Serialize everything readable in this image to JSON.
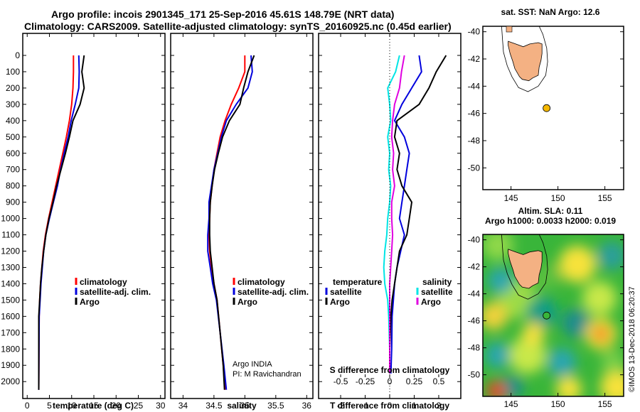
{
  "header": {
    "title_line1": "Argo profile: incois 2901345_171 25-Sep-2016 45.61S 148.79E (NRT data)",
    "title_line2": "Climatology: CARS2009. Satellite-adjusted climatology: synTS_20160925.nc (0.45d earlier)"
  },
  "depth_ticks": [
    "0",
    "100",
    "200",
    "300",
    "400",
    "500",
    "600",
    "700",
    "800",
    "900",
    "1000",
    "1100",
    "1200",
    "1300",
    "1400",
    "1500",
    "1600",
    "1700",
    "1800",
    "1900",
    "2000"
  ],
  "colors": {
    "climatology": "#ff0000",
    "satellite": "#0000dd",
    "argo": "#000000",
    "sat_diff_s": "#00e5e5",
    "argo_diff_s": "#e000e0",
    "land": "#f4b183"
  },
  "panels": {
    "temperature": {
      "xlabel": "temperature (deg C)",
      "xticks": [
        "0",
        "5",
        "10",
        "15",
        "20",
        "25",
        "30"
      ],
      "legend": [
        "climatology",
        "satellite-adj. clim.",
        "Argo"
      ]
    },
    "salinity": {
      "xlabel": "salinity",
      "xticks": [
        "34",
        "34.5",
        "35",
        "35.5",
        "36"
      ],
      "legend": [
        "climatology",
        "satellite-adj. clim.",
        "Argo"
      ],
      "credit1": "Argo INDIA",
      "credit2": "PI: M Ravichandran"
    },
    "difference": {
      "xlabel": "T difference from climatology",
      "xticks": [
        "-2",
        "-1",
        "0",
        "1",
        "2"
      ],
      "s_label": "S difference from climatology",
      "s_ticks": [
        "-0.5",
        "-0.25",
        "0",
        "0.25",
        "0.5"
      ],
      "legend_t_title": "temperature",
      "legend_s_title": "salinity",
      "legend_t": [
        "satellite",
        "Argo"
      ],
      "legend_s": [
        "satellite",
        "Argo"
      ]
    }
  },
  "maps": {
    "sst_title": "sat. SST: NaN Argo: 12.6",
    "sla_title": "Altim. SLA: 0.11",
    "sla_sub": "Argo h1000: 0.0033 h2000: 0.019",
    "lat_ticks_top": [
      "-40",
      "-42",
      "-44",
      "-46",
      "-48",
      "-50"
    ],
    "lat_ticks_bottom": [
      "-40",
      "-42",
      "-44",
      "-46",
      "-48",
      "-50"
    ],
    "lon_ticks": [
      "145",
      "150",
      "155"
    ],
    "float_position": {
      "lon": 148.79,
      "lat": -45.61
    },
    "footer": "©IMOS 13-Dec-2018 06:20:37"
  },
  "chart_data": [
    {
      "type": "line",
      "title": "",
      "xlabel": "temperature (deg C)",
      "ylabel": "",
      "xlim": [
        -1,
        31
      ],
      "ylim": [
        2050,
        0
      ],
      "series": [
        {
          "name": "climatology",
          "x": [
            10.4,
            10.4,
            10.3,
            10.0,
            9.5,
            8.8,
            8.0,
            7.2,
            6.4,
            5.6,
            4.8,
            4.1,
            3.6,
            3.3,
            3.0,
            2.8,
            2.7,
            2.6
          ],
          "y": [
            0,
            100,
            200,
            300,
            400,
            500,
            600,
            700,
            800,
            900,
            1000,
            1100,
            1200,
            1300,
            1400,
            1500,
            1600,
            2050
          ]
        },
        {
          "name": "satellite-adj. clim.",
          "x": [
            11.6,
            11.7,
            11.6,
            10.8,
            9.9,
            9.2,
            8.3,
            7.5,
            6.8,
            5.9,
            5.0,
            4.2,
            3.7,
            3.4,
            3.1,
            2.9,
            2.7,
            2.6
          ],
          "y": [
            0,
            100,
            200,
            300,
            400,
            500,
            600,
            700,
            800,
            900,
            1000,
            1100,
            1200,
            1300,
            1400,
            1500,
            1600,
            2050
          ]
        },
        {
          "name": "Argo",
          "x": [
            12.8,
            12.3,
            12.8,
            11.9,
            10.3,
            9.5,
            8.6,
            7.6,
            6.6,
            5.8,
            4.9,
            4.2,
            3.7,
            3.3,
            3.0,
            2.8,
            2.6,
            2.6
          ],
          "y": [
            0,
            100,
            200,
            300,
            400,
            500,
            600,
            700,
            800,
            900,
            1000,
            1100,
            1200,
            1300,
            1400,
            1500,
            1600,
            2050
          ]
        }
      ]
    },
    {
      "type": "line",
      "xlabel": "salinity",
      "xlim": [
        33.8,
        36.1
      ],
      "ylim": [
        2050,
        0
      ],
      "series": [
        {
          "name": "climatology",
          "x": [
            35.0,
            35.0,
            34.9,
            34.78,
            34.68,
            34.6,
            34.55,
            34.5,
            34.47,
            34.44,
            34.43,
            34.42,
            34.43,
            34.46,
            34.5,
            34.55,
            34.6,
            34.65,
            34.68
          ],
          "y": [
            0,
            100,
            200,
            300,
            400,
            500,
            600,
            700,
            800,
            900,
            1000,
            1100,
            1200,
            1300,
            1400,
            1500,
            1700,
            1900,
            2050
          ]
        },
        {
          "name": "satellite-adj. clim.",
          "x": [
            35.1,
            35.12,
            35.05,
            34.86,
            34.7,
            34.62,
            34.56,
            34.5,
            34.46,
            34.42,
            34.42,
            34.4,
            34.4,
            34.44,
            34.48,
            34.54,
            34.6,
            34.66,
            34.7
          ],
          "y": [
            0,
            100,
            200,
            300,
            400,
            500,
            600,
            700,
            800,
            900,
            1000,
            1100,
            1200,
            1300,
            1400,
            1500,
            1700,
            1900,
            2050
          ]
        },
        {
          "name": "Argo",
          "x": [
            35.15,
            35.05,
            34.98,
            34.92,
            34.75,
            34.64,
            34.57,
            34.51,
            34.47,
            34.44,
            34.43,
            34.43,
            34.44,
            34.47,
            34.5,
            34.55,
            34.6,
            34.65,
            34.67
          ],
          "y": [
            0,
            100,
            200,
            300,
            400,
            500,
            600,
            700,
            800,
            900,
            1000,
            1100,
            1200,
            1300,
            1400,
            1500,
            1700,
            1900,
            2050
          ]
        }
      ]
    },
    {
      "type": "line",
      "xlabel": "T difference from climatology",
      "xlim": [
        -2.9,
        2.9
      ],
      "ylim": [
        2050,
        0
      ],
      "series": [
        {
          "name": "satellite",
          "x": [
            1.2,
            1.3,
            0.9,
            0.5,
            0.2,
            0.6,
            0.8,
            0.7,
            0.6,
            0.5,
            0.4,
            0.6,
            0.45,
            0.3,
            0.2,
            0.15,
            0.1,
            0.08,
            0.05
          ],
          "y": [
            0,
            100,
            200,
            300,
            400,
            500,
            600,
            700,
            800,
            900,
            1000,
            1100,
            1200,
            1300,
            1400,
            1500,
            1600,
            1800,
            1950
          ]
        },
        {
          "name": "Argo",
          "x": [
            2.3,
            1.9,
            1.6,
            1.2,
            0.3,
            0.2,
            0.4,
            0.3,
            0.5,
            0.9,
            0.8,
            0.7,
            0.4,
            0.3,
            0.2,
            0.1,
            0.05,
            0.0,
            0.0
          ],
          "y": [
            0,
            100,
            200,
            300,
            400,
            500,
            600,
            700,
            800,
            900,
            1000,
            1100,
            1200,
            1300,
            1400,
            1500,
            1600,
            1800,
            1950
          ]
        }
      ]
    },
    {
      "type": "line",
      "xlabel": "S difference from climatology",
      "xlim": [
        -0.725,
        0.725
      ],
      "ylim": [
        2050,
        0
      ],
      "series": [
        {
          "name": "satellite",
          "x": [
            0.1,
            0.06,
            -0.02,
            0.0,
            0.01,
            -0.02,
            0.0,
            -0.01,
            0.01,
            0.0,
            -0.02,
            -0.03,
            -0.05,
            -0.06,
            -0.05,
            -0.02,
            -0.01,
            0.0,
            0.0
          ],
          "y": [
            0,
            100,
            200,
            300,
            400,
            500,
            600,
            700,
            800,
            900,
            1000,
            1100,
            1200,
            1300,
            1400,
            1500,
            1600,
            1800,
            1950
          ]
        },
        {
          "name": "Argo",
          "x": [
            0.15,
            0.12,
            0.1,
            0.05,
            0.03,
            0.02,
            0.04,
            0.03,
            0.05,
            0.02,
            0.02,
            0.03,
            0.02,
            0.01,
            0.0,
            0.0,
            0.0,
            0.0,
            0.0
          ],
          "y": [
            0,
            100,
            200,
            300,
            400,
            500,
            600,
            700,
            800,
            900,
            1000,
            1100,
            1200,
            1300,
            1400,
            1500,
            1600,
            1800,
            1950
          ]
        }
      ]
    }
  ]
}
